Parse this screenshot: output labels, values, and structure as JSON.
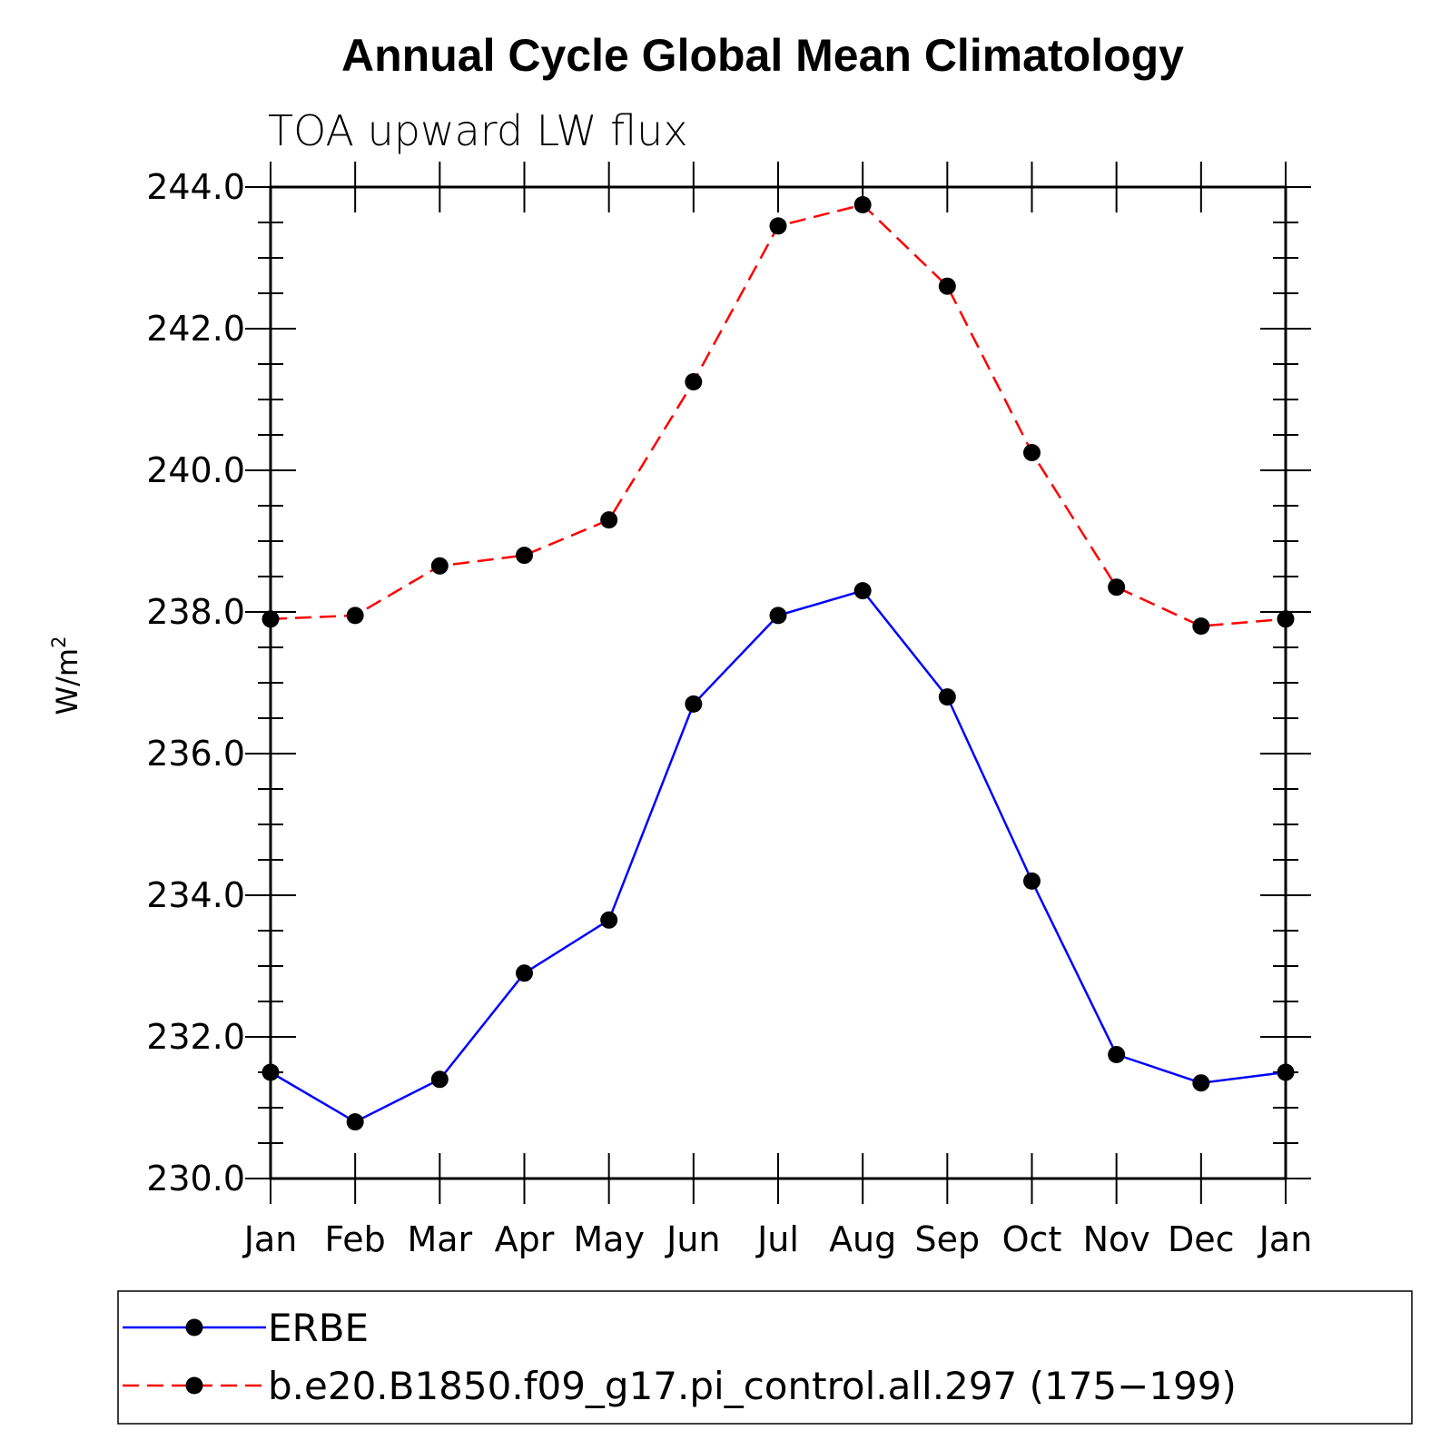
{
  "chart_data": {
    "type": "line",
    "title": "Annual Cycle Global Mean Climatology",
    "subtitle": "TOA upward LW flux",
    "ylabel_main": "W/m",
    "ylabel_sup": "2",
    "xlabel": "",
    "categories": [
      "Jan",
      "Feb",
      "Mar",
      "Apr",
      "May",
      "Jun",
      "Jul",
      "Aug",
      "Sep",
      "Oct",
      "Nov",
      "Dec",
      "Jan"
    ],
    "ylim": [
      230.0,
      244.0
    ],
    "yticks": [
      "230.0",
      "232.0",
      "234.0",
      "236.0",
      "238.0",
      "240.0",
      "242.0",
      "244.0"
    ],
    "series": [
      {
        "name": "ERBE",
        "color": "#0000ff",
        "style": "solid",
        "values": [
          231.5,
          230.8,
          231.4,
          232.9,
          233.65,
          236.7,
          237.95,
          238.3,
          236.8,
          234.2,
          231.75,
          231.35,
          231.5
        ]
      },
      {
        "name": "b.e20.B1850.f09_g17.pi_control.all.297 (175−199)",
        "color": "#ff0000",
        "style": "dashed",
        "values": [
          237.9,
          237.95,
          238.65,
          238.8,
          239.3,
          241.25,
          243.45,
          243.75,
          242.6,
          240.25,
          238.35,
          237.8,
          237.9
        ]
      }
    ],
    "marker_color": "#000000",
    "legend_position": "bottom"
  }
}
